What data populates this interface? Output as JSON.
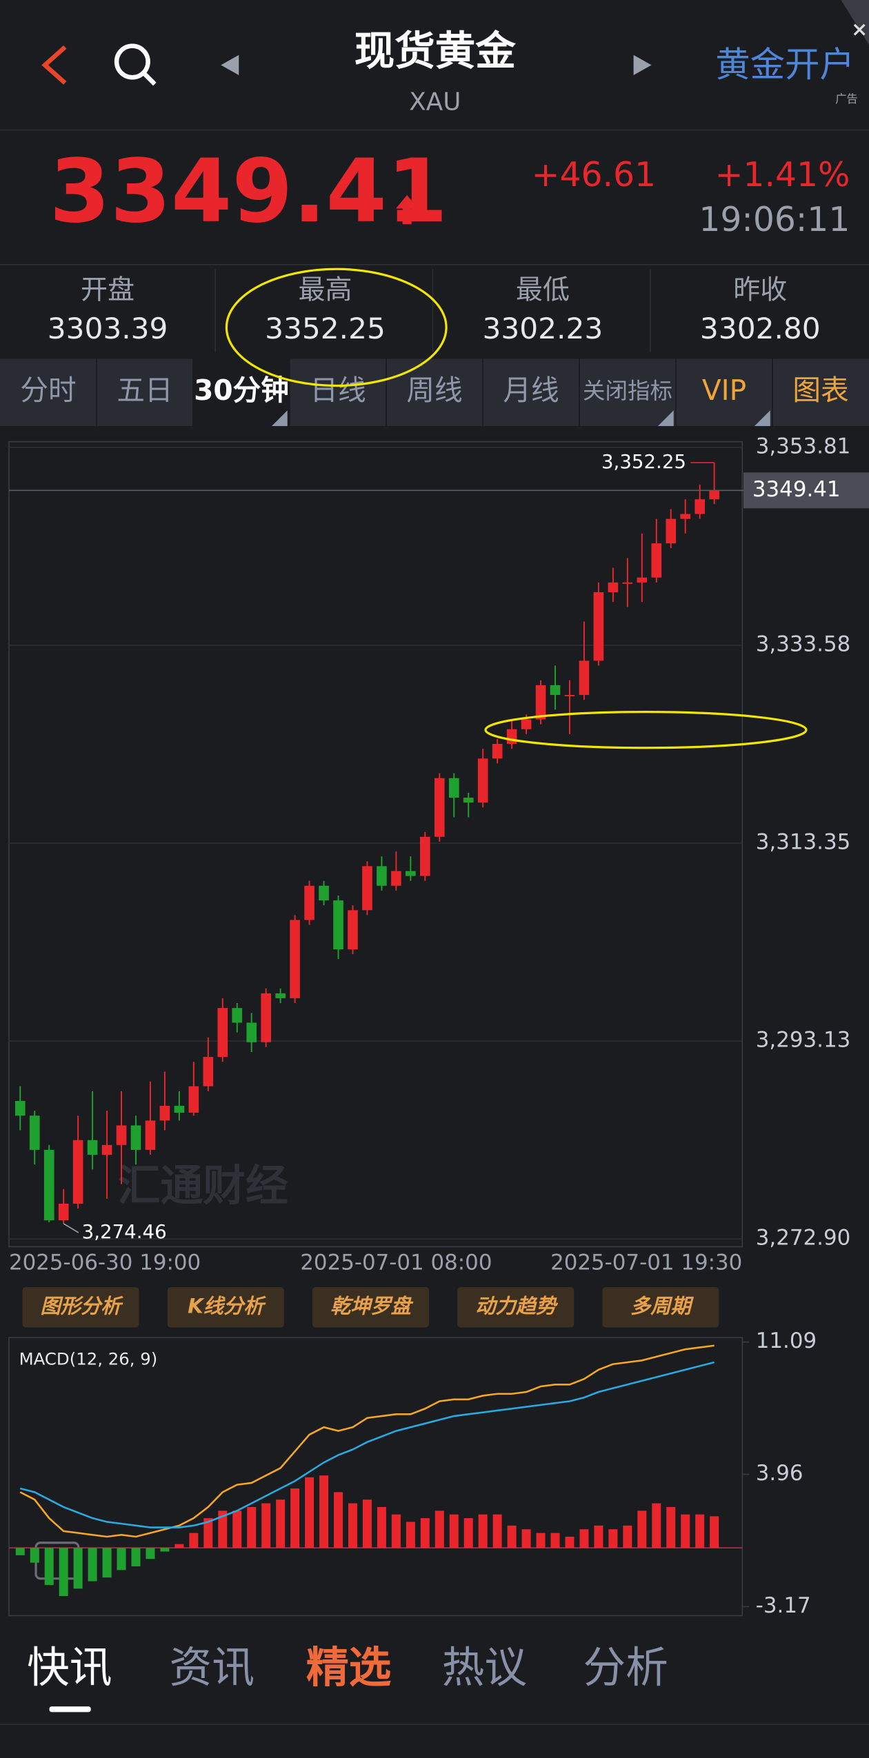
{
  "header": {
    "title": "现货黄金",
    "symbol": "XAU",
    "ad_button": "黄金开户",
    "ad_tag": "广告"
  },
  "quote": {
    "price": "3349.41",
    "change": "+46.61",
    "change_pct": "+1.41%",
    "time": "19:06:11"
  },
  "stats": [
    {
      "label": "开盘",
      "value": "3303.39"
    },
    {
      "label": "最高",
      "value": "3352.25"
    },
    {
      "label": "最低",
      "value": "3302.23"
    },
    {
      "label": "昨收",
      "value": "3302.80"
    }
  ],
  "tabs": {
    "items": [
      "分时",
      "五日",
      "30分钟",
      "日线",
      "周线",
      "月线",
      "关闭指标",
      "VIP",
      "图表"
    ],
    "selected": 2
  },
  "tools": [
    "图形分析",
    "K线分析",
    "乾坤罗盘",
    "动力趋势",
    "多周期"
  ],
  "news_tabs": {
    "items": [
      "快讯",
      "资讯",
      "精选",
      "热议",
      "分析"
    ],
    "active": 0,
    "featured": 2
  },
  "chart_data": [
    {
      "type": "candlestick",
      "watermark": "汇通财经",
      "up_color": "#e8262b",
      "down_color": "#1fa12f",
      "grid": true,
      "x": [
        "2025-06-30 19:00",
        null,
        null,
        null,
        null,
        null,
        null,
        null,
        null,
        null,
        null,
        null,
        null,
        null,
        null,
        null,
        null,
        null,
        null,
        null,
        null,
        null,
        null,
        null,
        null,
        null,
        "2025-07-01 08:00",
        null,
        null,
        null,
        null,
        null,
        null,
        null,
        null,
        null,
        null,
        null,
        null,
        null,
        null,
        null,
        null,
        null,
        null,
        null,
        null,
        null,
        "2025-07-01 19:30"
      ],
      "open": [
        3287.0,
        3285.5,
        3282.0,
        3274.8,
        3276.5,
        3283.0,
        3281.5,
        3282.5,
        3284.5,
        3282.0,
        3285.0,
        3286.5,
        3285.8,
        3288.5,
        3291.5,
        3296.5,
        3295.0,
        3293.0,
        3298.0,
        3297.5,
        3305.5,
        3309.0,
        3307.5,
        3302.5,
        3306.5,
        3311.0,
        3309.0,
        3310.5,
        3310.0,
        3314.0,
        3320.0,
        3318.0,
        3317.5,
        3322.0,
        3323.5,
        3325.0,
        3326.0,
        3329.5,
        3328.5,
        3328.5,
        3332.0,
        3339.0,
        3340.0,
        3340.0,
        3340.5,
        3344.0,
        3346.5,
        3347.0,
        3348.5
      ],
      "high": [
        3288.5,
        3286.0,
        3282.5,
        3278.0,
        3285.5,
        3288.0,
        3286.0,
        3288.0,
        3285.5,
        3289.0,
        3290.0,
        3288.0,
        3291.0,
        3293.5,
        3297.5,
        3297.0,
        3296.0,
        3298.5,
        3298.5,
        3306.0,
        3309.5,
        3309.5,
        3308.0,
        3307.0,
        3311.5,
        3312.0,
        3312.5,
        3312.0,
        3314.5,
        3320.5,
        3320.5,
        3318.5,
        3323.0,
        3324.0,
        3326.0,
        3326.5,
        3330.0,
        3331.5,
        3330.0,
        3336.0,
        3340.0,
        3341.5,
        3342.5,
        3345.0,
        3346.5,
        3347.5,
        3348.5,
        3350.0,
        3352.25
      ],
      "low": [
        3284.0,
        3280.5,
        3274.6,
        3274.46,
        3276.0,
        3280.0,
        3277.0,
        3278.5,
        3280.5,
        3281.5,
        3284.0,
        3285.0,
        3285.5,
        3288.0,
        3291.0,
        3294.0,
        3292.0,
        3292.5,
        3297.0,
        3297.0,
        3305.0,
        3307.0,
        3301.5,
        3302.0,
        3306.0,
        3308.5,
        3308.5,
        3309.5,
        3309.5,
        3313.5,
        3316.0,
        3316.0,
        3317.0,
        3321.5,
        3323.0,
        3324.5,
        3325.5,
        3327.0,
        3324.5,
        3328.0,
        3331.5,
        3338.0,
        3337.5,
        3338.0,
        3340.0,
        3343.5,
        3345.0,
        3346.5,
        3348.0
      ],
      "close": [
        3285.5,
        3282.0,
        3274.8,
        3276.5,
        3283.0,
        3281.5,
        3282.5,
        3284.5,
        3282.0,
        3285.0,
        3286.5,
        3285.8,
        3288.5,
        3291.5,
        3296.5,
        3295.0,
        3293.0,
        3298.0,
        3297.5,
        3305.5,
        3309.0,
        3307.5,
        3302.5,
        3306.5,
        3311.0,
        3309.0,
        3310.5,
        3310.0,
        3314.0,
        3320.0,
        3318.0,
        3317.5,
        3322.0,
        3323.5,
        3325.0,
        3326.0,
        3329.5,
        3328.5,
        3328.5,
        3332.0,
        3339.0,
        3340.0,
        3340.0,
        3340.5,
        3344.0,
        3346.5,
        3347.0,
        3348.5,
        3349.41
      ],
      "ylim": [
        3272.9,
        3353.81
      ],
      "yticks": [
        {
          "value": 3272.9,
          "label": "3,272.90"
        },
        {
          "value": 3293.13,
          "label": "3,293.13"
        },
        {
          "value": 3313.35,
          "label": "3,313.35"
        },
        {
          "value": 3333.58,
          "label": "3,333.58"
        },
        {
          "value": 3353.81,
          "label": "3,353.81"
        }
      ],
      "high_label": {
        "value": 3352.25,
        "label": "3,352.25"
      },
      "low_label": {
        "value": 3274.46,
        "label": "3,274.46"
      }
    },
    {
      "type": "macd",
      "title": "MACD(12, 26, 9)",
      "up_color": "#e8262b",
      "down_color": "#1fa12f",
      "series": [
        {
          "color": "#f5a623",
          "values": [
            3.0,
            2.6,
            1.6,
            0.9,
            0.8,
            0.7,
            0.6,
            0.7,
            0.6,
            0.8,
            1.0,
            1.2,
            1.6,
            2.2,
            3.0,
            3.4,
            3.5,
            3.9,
            4.3,
            5.2,
            6.1,
            6.5,
            6.3,
            6.5,
            7.0,
            7.1,
            7.2,
            7.2,
            7.5,
            7.9,
            8.0,
            8.0,
            8.2,
            8.3,
            8.3,
            8.4,
            8.7,
            8.8,
            8.8,
            9.1,
            9.6,
            9.9,
            10.0,
            10.1,
            10.3,
            10.5,
            10.7,
            10.8,
            10.9
          ]
        },
        {
          "color": "#29a9e0",
          "values": [
            3.2,
            3.0,
            2.6,
            2.2,
            1.9,
            1.6,
            1.4,
            1.3,
            1.2,
            1.1,
            1.1,
            1.1,
            1.2,
            1.4,
            1.7,
            2.0,
            2.4,
            2.8,
            3.2,
            3.6,
            4.1,
            4.6,
            5.0,
            5.3,
            5.7,
            6.0,
            6.3,
            6.5,
            6.7,
            6.9,
            7.1,
            7.2,
            7.3,
            7.4,
            7.5,
            7.6,
            7.7,
            7.8,
            7.9,
            8.1,
            8.4,
            8.6,
            8.8,
            9.0,
            9.2,
            9.4,
            9.6,
            9.8,
            10.0
          ]
        }
      ],
      "histogram": [
        -0.4,
        -0.8,
        -2.0,
        -2.6,
        -2.2,
        -1.8,
        -1.6,
        -1.2,
        -1.0,
        -0.6,
        -0.2,
        0.2,
        0.8,
        1.6,
        2.0,
        2.0,
        2.2,
        2.4,
        2.6,
        3.2,
        3.8,
        3.9,
        3.0,
        2.4,
        2.6,
        2.2,
        1.8,
        1.4,
        1.6,
        2.0,
        1.8,
        1.6,
        1.8,
        1.8,
        1.2,
        1.0,
        0.8,
        0.8,
        0.6,
        1.0,
        1.2,
        1.0,
        1.2,
        2.0,
        2.4,
        2.2,
        1.8,
        1.8,
        1.7
      ],
      "ylim": [
        -3.17,
        11.09
      ],
      "yticks": [
        -3.17,
        3.96,
        11.09
      ]
    }
  ]
}
